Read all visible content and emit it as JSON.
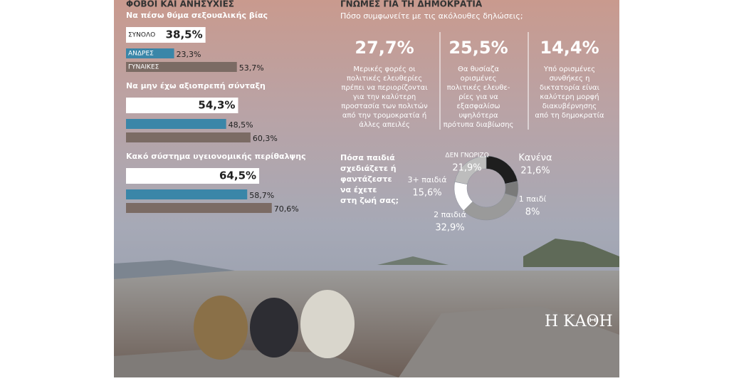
{
  "left_title": "ΦΟΒΟΙ ΚΑΙ ΑΝΗΣΥΧΙΕΣ",
  "right_title": "ΓΝΩΜΕΣ ΓΙΑ ΤΗ ΔΗΜΟΚΡΑΤΙΑ",
  "right_subtitle": "Πόσο συμφωνείτε με τις ακόλουθες δηλώσεις;",
  "statements": [
    {
      "value": "27,7%",
      "lines": [
        "Μερικές φορές οι",
        "πολιτικές ελευθερίες",
        "πρέπει να περιορίζονται",
        "για την καλύτερη",
        "προστασία των πολιτών",
        "από την τρομοκρατία ή",
        "άλλες απειλές"
      ]
    },
    {
      "value": "25,5%",
      "lines": [
        "Θα θυσίαζα",
        "ορισμένες",
        "πολιτικές ελευθε-",
        "ρίες για να",
        "εξασφαλίσω",
        "υψηλότερα",
        "πρότυπα διαβίωσης"
      ]
    },
    {
      "value": "14,4%",
      "lines": [
        "Υπό ορισμένες",
        "συνθήκες η",
        "δικτατορία είναι",
        "καλύτερη μορφή",
        "διακυβέρνησης",
        "από τη δημοκρατία"
      ]
    }
  ],
  "logo": "Η ΚΑΘΗ",
  "chart_data": [
    {
      "type": "bar",
      "title": "Να πέσω θύμα σεξουαλικής βίας",
      "categories": [
        "ΣΥΝΟΛΟ",
        "ΑΝΔΡΕΣ",
        "ΓΥΝΑΙΚΕΣ"
      ],
      "values": [
        38.5,
        23.3,
        53.7
      ],
      "value_labels": [
        "38,5%",
        "23,3%",
        "53,7%"
      ],
      "colors": [
        "#ffffff",
        "#3a86a8",
        "#7b6b64"
      ]
    },
    {
      "type": "bar",
      "title": "Να μην έχω αξιοπρεπή σύνταξη",
      "categories": [
        null,
        null,
        null
      ],
      "values": [
        54.3,
        48.5,
        60.3
      ],
      "value_labels": [
        "54,3%",
        "48,5%",
        "60,3%"
      ],
      "colors": [
        "#ffffff",
        "#3a86a8",
        "#7b6b64"
      ]
    },
    {
      "type": "bar",
      "title": "Κακό σύστημα υγειονομικής περίθαλψης",
      "categories": [
        null,
        null,
        null
      ],
      "values": [
        64.5,
        58.7,
        70.6
      ],
      "value_labels": [
        "64,5%",
        "58,7%",
        "70,6%"
      ],
      "colors": [
        "#ffffff",
        "#3a86a8",
        "#7b6b64"
      ]
    },
    {
      "type": "pie",
      "title": [
        "Πόσα παιδιά",
        "σχεδιάζετε ή",
        "φαντάζεστε",
        "να έχετε",
        "στη ζωή σας;"
      ],
      "categories": [
        "Κανένα",
        "1 παιδί",
        "2 παιδιά",
        "3+ παιδιά",
        "ΔΕΝ ΓΝΩΡΙΖΩ"
      ],
      "values": [
        21.6,
        8,
        32.9,
        15.6,
        21.9
      ],
      "value_labels": [
        "21,6%",
        "8%",
        "32,9%",
        "15,6%",
        "21,9%"
      ],
      "colors": [
        "#1e1e1e",
        "#7a7a7a",
        "#9a9a9a",
        "#ffffff",
        "#bdbdbd"
      ]
    }
  ]
}
